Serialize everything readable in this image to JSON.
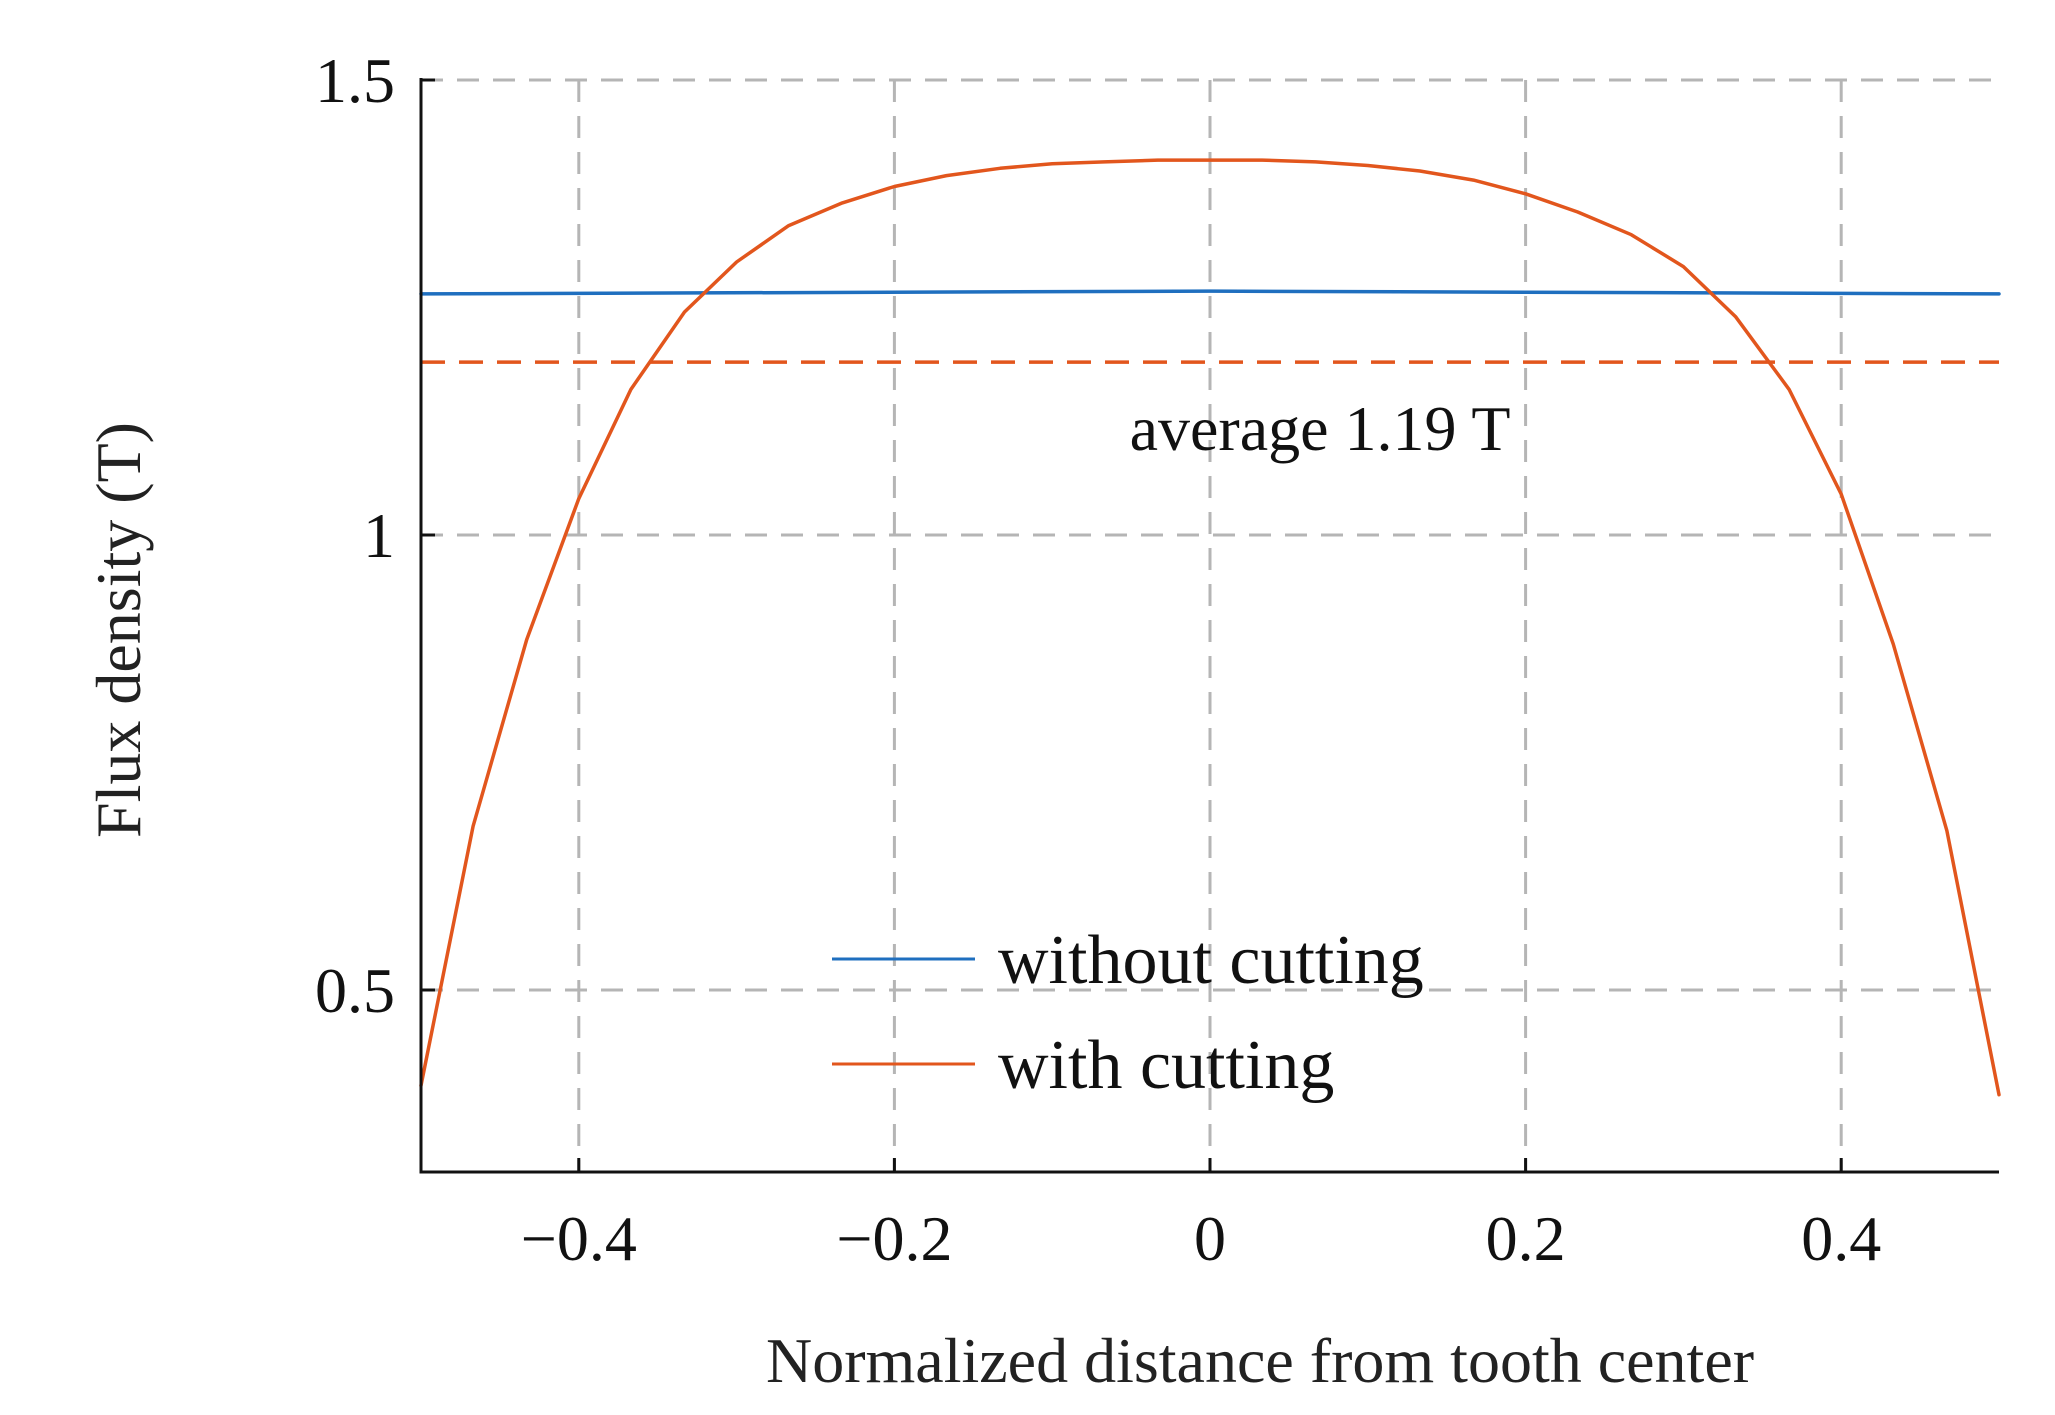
{
  "chart_data": {
    "type": "line",
    "title": "",
    "xlabel": "Normalized distance from tooth center",
    "ylabel": "Flux density (T)",
    "xlim": [
      -0.5,
      0.5
    ],
    "ylim": [
      0.3,
      1.5
    ],
    "xticks": [
      -0.4,
      -0.2,
      0,
      0.2,
      0.4
    ],
    "xtick_labels": [
      "−0.4",
      "−0.2",
      "0",
      "0.2",
      "0.4"
    ],
    "yticks": [
      0.5,
      1,
      1.5
    ],
    "ytick_labels": [
      "0.5",
      "1",
      "1.5"
    ],
    "grid": true,
    "legend_position": "bottom-center",
    "series": [
      {
        "name": "without cutting",
        "color": "#1f6fbf",
        "style": "solid",
        "x": [
          -0.5,
          0.0,
          0.5
        ],
        "y": [
          1.265,
          1.268,
          1.265
        ]
      },
      {
        "name": "with cutting",
        "color": "#e2561d",
        "style": "solid",
        "x": [
          -0.5,
          -0.467,
          -0.433,
          -0.4,
          -0.367,
          -0.333,
          -0.3,
          -0.267,
          -0.233,
          -0.2,
          -0.167,
          -0.133,
          -0.1,
          -0.067,
          -0.033,
          0.0,
          0.033,
          0.067,
          0.1,
          0.133,
          0.167,
          0.2,
          0.233,
          0.267,
          0.3,
          0.333,
          0.367,
          0.4,
          0.433,
          0.467,
          0.5
        ],
        "y": [
          0.395,
          0.68,
          0.885,
          1.04,
          1.16,
          1.245,
          1.3,
          1.34,
          1.365,
          1.383,
          1.395,
          1.403,
          1.408,
          1.41,
          1.412,
          1.412,
          1.412,
          1.41,
          1.406,
          1.4,
          1.39,
          1.375,
          1.355,
          1.33,
          1.295,
          1.24,
          1.16,
          1.045,
          0.88,
          0.675,
          0.385
        ]
      }
    ],
    "reference_lines": [
      {
        "name": "average",
        "y": 1.19,
        "color": "#e2561d",
        "style": "dashed",
        "label": "average 1.19 T"
      }
    ]
  }
}
